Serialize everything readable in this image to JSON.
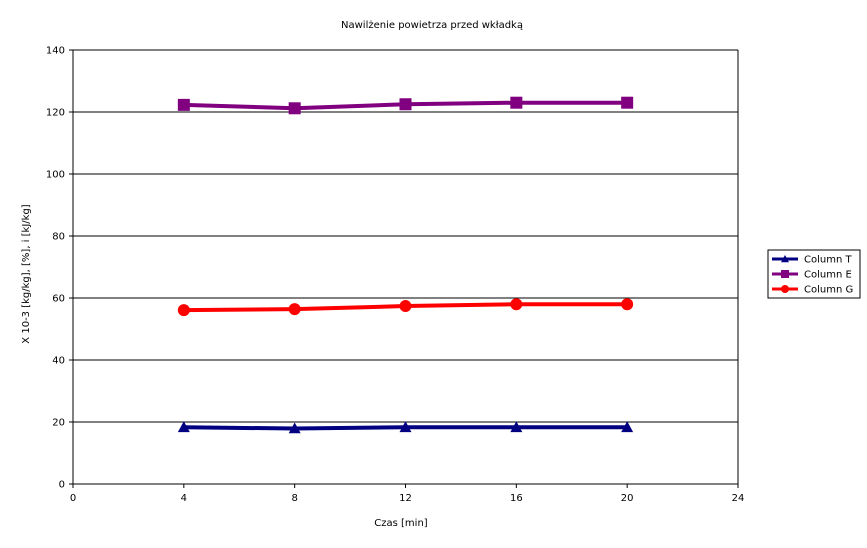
{
  "chart_data": {
    "type": "line",
    "title": "Nawilżenie powietrza przed wkładką",
    "xlabel": "Czas [min]",
    "ylabel": "X  10-3 [kg/kg],    [%],   i [kJ/kg]",
    "xlim": [
      0,
      24
    ],
    "ylim": [
      0,
      140
    ],
    "x_ticks": [
      0,
      4,
      8,
      12,
      16,
      20,
      24
    ],
    "y_ticks": [
      0,
      20,
      40,
      60,
      80,
      100,
      120,
      140
    ],
    "grid": "horizontal",
    "legend_position": "right",
    "x": [
      4,
      8,
      12,
      16,
      20
    ],
    "series": [
      {
        "name": "Column T",
        "color": "#000080",
        "marker": "triangle",
        "values": [
          18.3,
          17.9,
          18.3,
          18.3,
          18.3
        ]
      },
      {
        "name": "Column E",
        "color": "#800080",
        "marker": "square",
        "values": [
          122.3,
          121.2,
          122.5,
          123.0,
          123.0
        ]
      },
      {
        "name": "Column G",
        "color": "#ff0000",
        "marker": "circle",
        "values": [
          56.1,
          56.4,
          57.4,
          58.0,
          58.0
        ]
      }
    ]
  }
}
